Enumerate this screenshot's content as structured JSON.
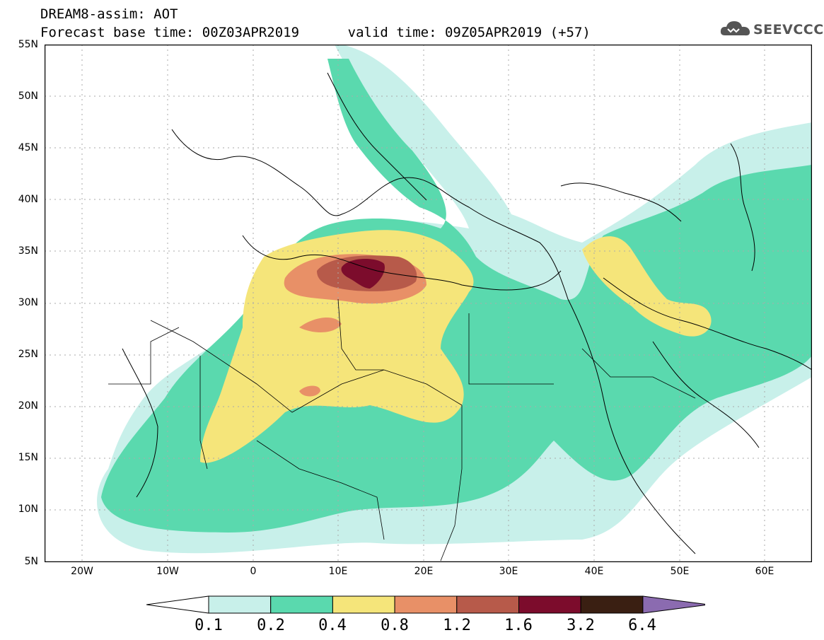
{
  "header": {
    "title": "DREAM8-assim: AOT",
    "subtitle": "Forecast base time: 00Z03APR2019      valid time: 09Z05APR2019 (+57)"
  },
  "logo": {
    "text": "SEEVCCC",
    "icon": "cloud-icon",
    "color": "#555555"
  },
  "map": {
    "variable": "AOT",
    "lat_labels": [
      "55N",
      "50N",
      "45N",
      "40N",
      "35N",
      "30N",
      "25N",
      "20N",
      "15N",
      "10N",
      "5N"
    ],
    "lon_labels": [
      "20W",
      "10W",
      "0",
      "10E",
      "20E",
      "30E",
      "40E",
      "50E",
      "60E"
    ],
    "lat_range": [
      5,
      55
    ],
    "lon_range": [
      -25,
      65
    ],
    "grid": true
  },
  "colorbar": {
    "labels": [
      "0.1",
      "0.2",
      "0.4",
      "0.8",
      "1.2",
      "1.6",
      "3.2",
      "6.4"
    ],
    "colors": [
      "#c8f0ea",
      "#5ad9ae",
      "#f5e57a",
      "#e89067",
      "#b75a4a",
      "#7c0c2c",
      "#3a1f12",
      "#8b6bb0"
    ],
    "under_color": "#ffffff"
  }
}
